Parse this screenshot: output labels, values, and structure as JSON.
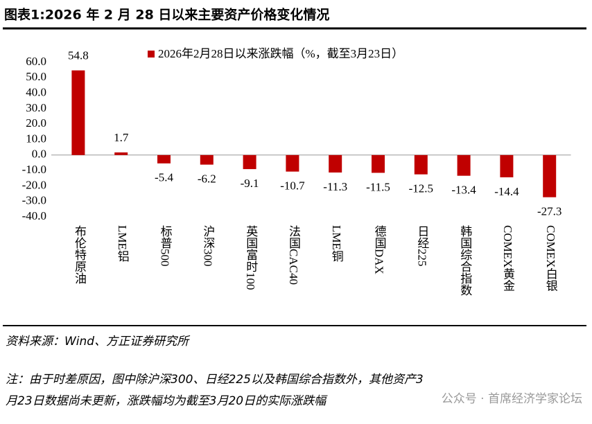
{
  "chart_data": {
    "type": "bar",
    "title": "图表1:2026 年 2 月 28 日以来主要资产价格变化情况",
    "categories": [
      "布伦特原油",
      "LME铝",
      "标普500",
      "沪深300",
      "英国富时100",
      "法国CAC40",
      "LME铜",
      "德国DAX",
      "日经225",
      "韩国综合指数",
      "COMEX黄金",
      "COMEX白银"
    ],
    "series": [
      {
        "name": "2026年2月28日以来涨跌幅（%，截至3月23日）",
        "color": "#c00000",
        "values": [
          54.8,
          1.7,
          -5.4,
          -6.2,
          -9.1,
          -10.7,
          -11.3,
          -11.5,
          -12.5,
          -13.4,
          -14.4,
          -27.3
        ]
      }
    ],
    "ylim": [
      -40,
      60
    ],
    "yticks": [
      {
        "value": -40,
        "label": "-40.0"
      },
      {
        "value": -30,
        "label": "-30.0"
      },
      {
        "value": -20,
        "label": "-20.0"
      },
      {
        "value": -10,
        "label": "-10.0"
      },
      {
        "value": 0,
        "label": "0.0"
      },
      {
        "value": 10,
        "label": "10.0"
      },
      {
        "value": 20,
        "label": "20.0"
      },
      {
        "value": 30,
        "label": "30.0"
      },
      {
        "value": 40,
        "label": "40.0"
      },
      {
        "value": 50,
        "label": "50.0"
      },
      {
        "value": 60,
        "label": "60.0"
      }
    ],
    "grid": false,
    "legend": "top",
    "source": "资料来源：Wind、方正证券研究所",
    "note": [
      "注：由于时差原因，图中除沪深300、日经225以及韩国综合指数外，其他资产3",
      "月23日数据尚未更新，涨跌幅均为截至3月20日的实际涨跌幅"
    ],
    "watermark": "公众号 · 首席经济学家论坛"
  }
}
